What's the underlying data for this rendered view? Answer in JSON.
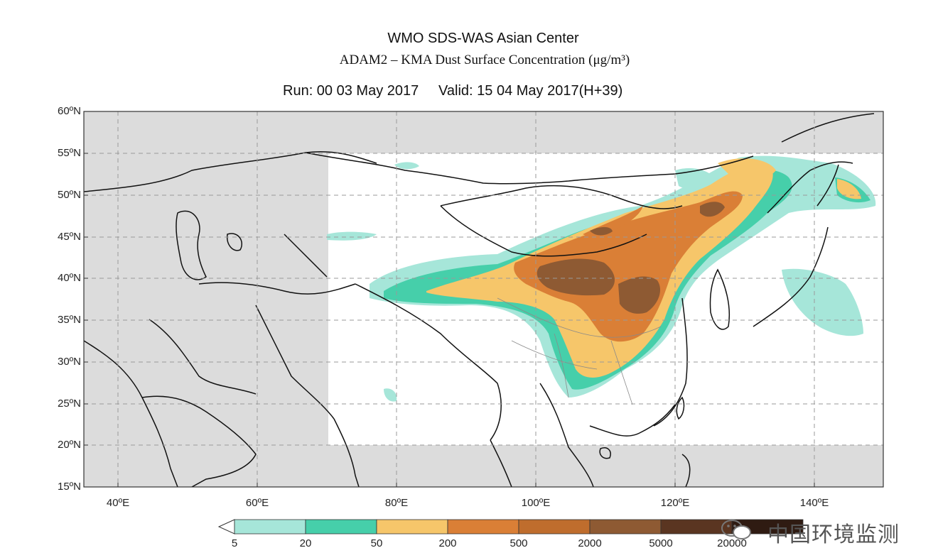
{
  "titles": {
    "line1": "WMO SDS-WAS Asian Center",
    "line2": "ADAM2 – KMA Dust Surface Concentration (μg/m³)",
    "run": "Run: 00 03 May 2017",
    "valid": "Valid: 15 04 May 2017(H+39)"
  },
  "map": {
    "lat_labels": [
      "60ºN",
      "55ºN",
      "50ºN",
      "45ºN",
      "40ºN",
      "35ºN",
      "30ºN",
      "25ºN",
      "20ºN",
      "15ºN"
    ],
    "lon_labels": [
      "40ºE",
      "60ºE",
      "80ºE",
      "100ºE",
      "120ºE",
      "140ºE"
    ],
    "lat_range": [
      15,
      60
    ],
    "lon_range": [
      35,
      150
    ],
    "grid": true
  },
  "colorbar": {
    "colors": [
      "#a6e6d9",
      "#46cfaa",
      "#f6c66a",
      "#da7f36",
      "#bf6d2d",
      "#8e5a33",
      "#5a3521",
      "#2f1b12"
    ],
    "tick_labels": [
      "5",
      "20",
      "50",
      "200",
      "500",
      "2000",
      "5000",
      "20000"
    ]
  },
  "concentration_colors": {
    "low": "#a6e6d9",
    "light": "#46cfaa",
    "moderate": "#f6c66a",
    "high": "#da7f36",
    "very_high": "#8e5a33"
  },
  "colors": {
    "outside_domain": "#dcdcdc",
    "land_border": "#111111",
    "grid_line": "#9a9a9a"
  },
  "watermark": "中国环境监测"
}
